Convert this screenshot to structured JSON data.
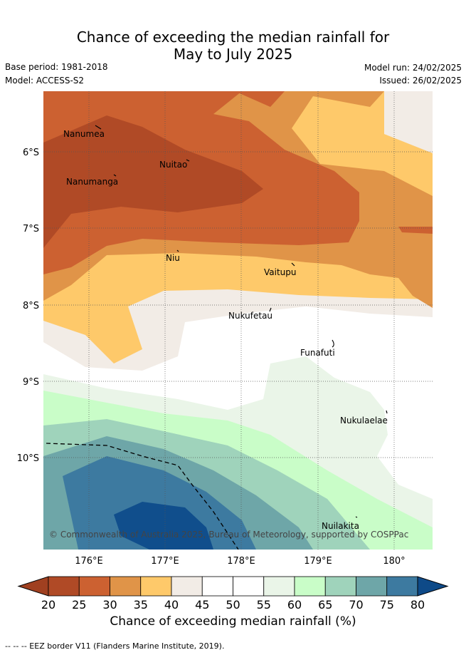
{
  "title_line1": "Chance of exceeding the median rainfall for",
  "title_line2": "May to July 2025",
  "base_period": "Base period: 1981-2018",
  "model": "Model: ACCESS-S2",
  "model_run": "Model run: 24/02/2025",
  "issued": "Issued: 26/02/2025",
  "copyright": "© Commonwealth of Australia 2025, Bureau of Meteorology, supported by COSPPac",
  "lat_labels": [
    "6°S",
    "7°S",
    "8°S",
    "9°S",
    "10°S"
  ],
  "lon_labels": [
    "176°E",
    "177°E",
    "178°E",
    "179°E",
    "180°"
  ],
  "islands": [
    {
      "name": "Nanumea"
    },
    {
      "name": "Nanumanga"
    },
    {
      "name": "Nuitao"
    },
    {
      "name": "Niu"
    },
    {
      "name": "Vaitupu"
    },
    {
      "name": "Nukufetau"
    },
    {
      "name": "Funafuti"
    },
    {
      "name": "Nukulaelae"
    },
    {
      "name": "Nuilakita"
    }
  ],
  "colorbar": {
    "ticks": [
      "20",
      "25",
      "30",
      "35",
      "40",
      "45",
      "50",
      "55",
      "60",
      "65",
      "70",
      "75",
      "80"
    ],
    "colors": [
      "#b04a26",
      "#cc6131",
      "#e09448",
      "#fec96a",
      "#f2ece6",
      "#ffffff",
      "#ffffff",
      "#eaf5e8",
      "#c9fdc8",
      "#9fd3bb",
      "#6ea6a8",
      "#3d7aa0",
      "#104e8c"
    ],
    "under_color": "#a04020",
    "over_color": "#0e4a88",
    "label": "Chance of exceeding median rainfall (%)"
  },
  "footnote": "-- -- -- EEZ border V11 (Flanders Marine Institute, 2019)."
}
